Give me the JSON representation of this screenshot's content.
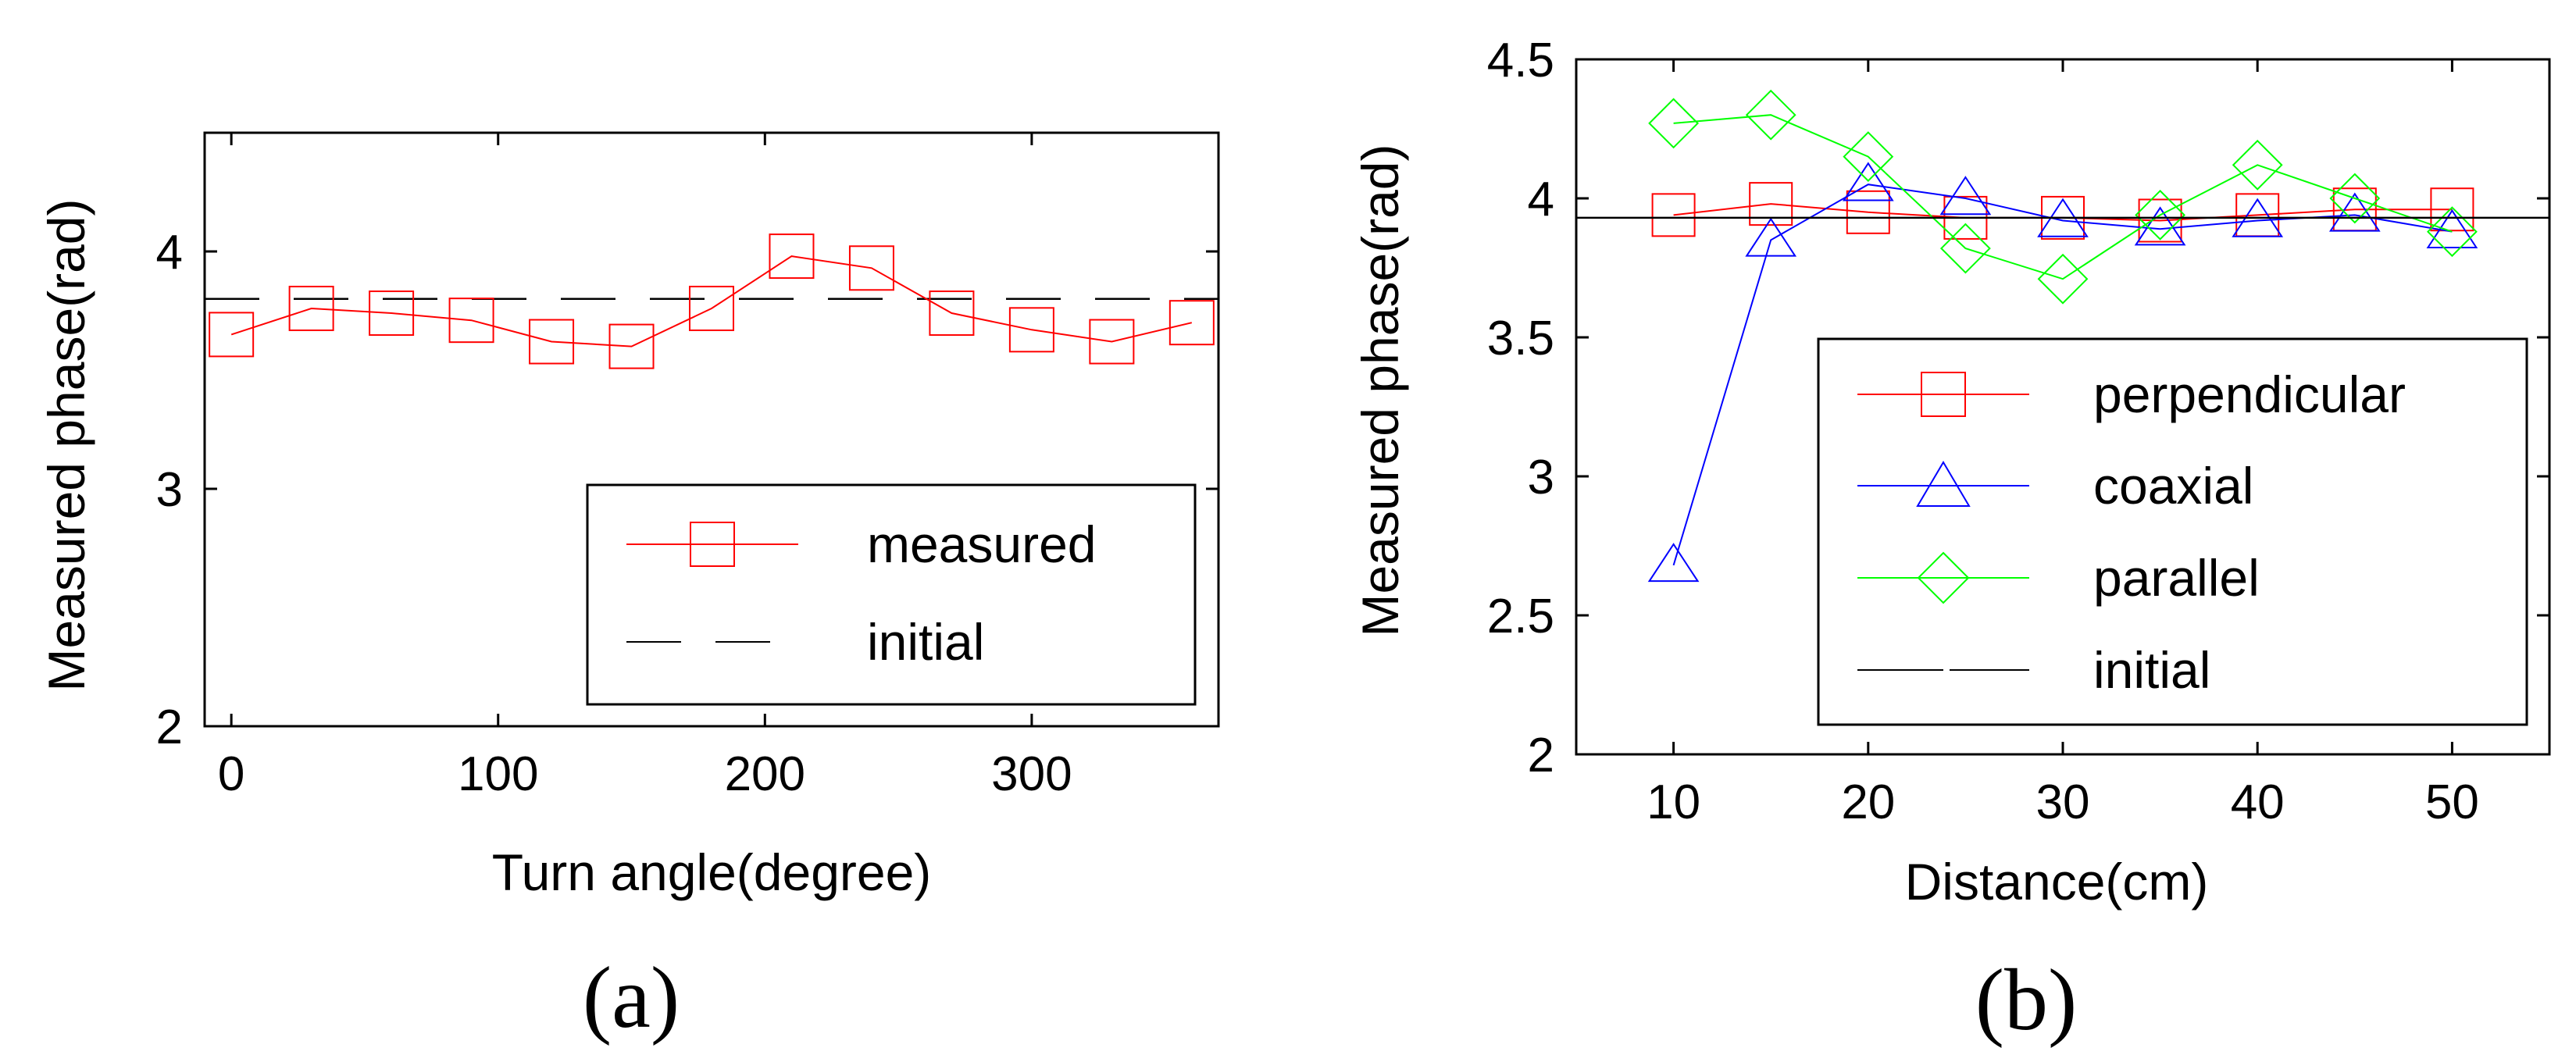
{
  "chart_data": [
    {
      "type": "line",
      "caption": "(a)",
      "xlabel": "Turn angle(degree)",
      "ylabel": "Measured phase(rad)",
      "xlim": [
        -10,
        370
      ],
      "ylim": [
        2,
        4.5
      ],
      "xticks": [
        0,
        100,
        200,
        300
      ],
      "yticks": [
        2,
        3,
        4
      ],
      "xtick_labels": [
        "0",
        "100",
        "200",
        "300"
      ],
      "ytick_labels": [
        "2",
        "3",
        "4"
      ],
      "legend_position": "bottom-right",
      "series": [
        {
          "name": "measured",
          "color": "#ff0000",
          "marker": "square",
          "x": [
            0,
            30,
            60,
            90,
            120,
            150,
            180,
            210,
            240,
            270,
            300,
            330,
            360
          ],
          "y": [
            3.65,
            3.76,
            3.74,
            3.71,
            3.62,
            3.6,
            3.76,
            3.98,
            3.93,
            3.74,
            3.67,
            3.62,
            3.7
          ]
        },
        {
          "name": "initial",
          "color": "#000000",
          "marker": "none",
          "dashed": true,
          "x": [
            -10,
            370
          ],
          "y": [
            3.8,
            3.8
          ]
        }
      ]
    },
    {
      "type": "line",
      "caption": "(b)",
      "xlabel": "Distance(cm)",
      "ylabel": "Measured phase(rad)",
      "xlim": [
        5,
        55
      ],
      "ylim": [
        2,
        4.5
      ],
      "xticks": [
        10,
        20,
        30,
        40,
        50
      ],
      "yticks": [
        2,
        2.5,
        3,
        3.5,
        4,
        4.5
      ],
      "xtick_labels": [
        "10",
        "20",
        "30",
        "40",
        "50"
      ],
      "ytick_labels": [
        "2",
        "2.5",
        "3",
        "3.5",
        "4",
        "4.5"
      ],
      "legend_position": "bottom-right",
      "series": [
        {
          "name": "perpendicular",
          "color": "#ff0000",
          "marker": "square",
          "x": [
            10,
            15,
            20,
            25,
            30,
            35,
            40,
            45,
            50
          ],
          "y": [
            3.94,
            3.98,
            3.95,
            3.93,
            3.93,
            3.92,
            3.94,
            3.96,
            3.96
          ]
        },
        {
          "name": "coaxial",
          "color": "#0000ff",
          "marker": "triangle",
          "x": [
            10,
            15,
            20,
            25,
            30,
            35,
            40,
            45,
            50
          ],
          "y": [
            2.68,
            3.85,
            4.05,
            4.0,
            3.92,
            3.89,
            3.92,
            3.94,
            3.88
          ]
        },
        {
          "name": "parallel",
          "color": "#00ff00",
          "marker": "diamond",
          "x": [
            10,
            15,
            20,
            25,
            30,
            35,
            40,
            45,
            50
          ],
          "y": [
            4.27,
            4.3,
            4.15,
            3.82,
            3.71,
            3.94,
            4.12,
            4.0,
            3.88
          ]
        },
        {
          "name": "initial",
          "color": "#000000",
          "marker": "none",
          "dashed": false,
          "x": [
            5,
            55
          ],
          "y": [
            3.93,
            3.93
          ]
        }
      ]
    }
  ]
}
